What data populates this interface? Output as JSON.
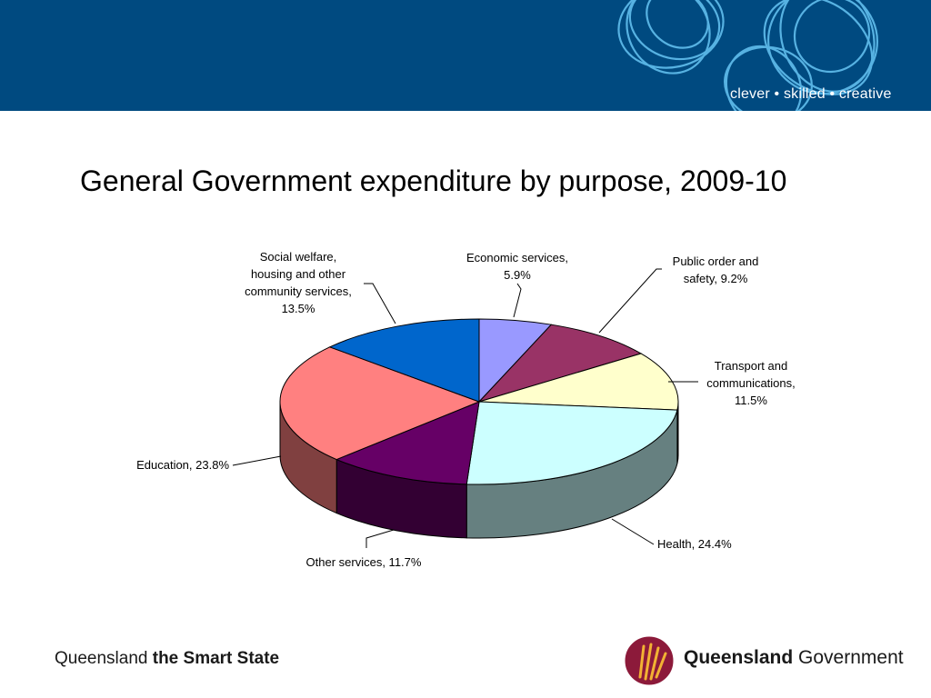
{
  "header": {
    "tagline": "clever • skilled • creative",
    "banner_color": "#004a80"
  },
  "slide": {
    "title": "General Government expenditure by purpose, 2009-10"
  },
  "chart_data": {
    "type": "pie",
    "title": "General Government expenditure by purpose, 2009-10",
    "unit": "%",
    "slices": [
      {
        "name": "Economic services",
        "value": 5.9,
        "color": "#9999ff",
        "label_lines": [
          "Economic services,",
          "5.9%"
        ]
      },
      {
        "name": "Public order and safety",
        "value": 9.2,
        "color": "#993366",
        "label_lines": [
          "Public order and",
          "safety, 9.2%"
        ]
      },
      {
        "name": "Transport and communications",
        "value": 11.5,
        "color": "#ffffcc",
        "label_lines": [
          "Transport and",
          "communications,",
          "11.5%"
        ]
      },
      {
        "name": "Health",
        "value": 24.4,
        "color": "#ccffff",
        "label_lines": [
          "Health, 24.4%"
        ]
      },
      {
        "name": "Other services",
        "value": 11.7,
        "color": "#660066",
        "label_lines": [
          "Other services, 11.7%"
        ]
      },
      {
        "name": "Education",
        "value": 23.8,
        "color": "#ff8080",
        "label_lines": [
          "Education, 23.8%"
        ]
      },
      {
        "name": "Social welfare, housing and other community services",
        "value": 13.5,
        "color": "#0066cc",
        "label_lines": [
          "Social welfare,",
          "housing and other",
          "community services,",
          "13.5%"
        ]
      }
    ]
  },
  "footer": {
    "left_regular": "Queensland ",
    "left_bold": "the Smart State",
    "logo_bold": "Queensland",
    "logo_regular": " Government"
  }
}
